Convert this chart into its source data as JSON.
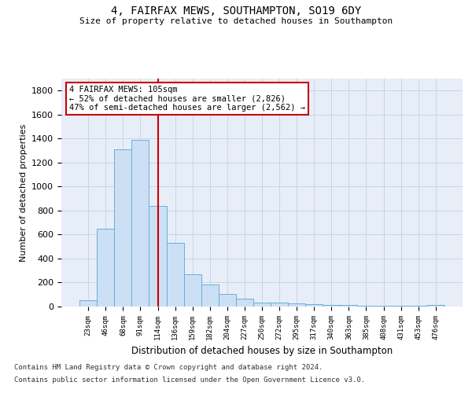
{
  "title1": "4, FAIRFAX MEWS, SOUTHAMPTON, SO19 6DY",
  "title2": "Size of property relative to detached houses in Southampton",
  "xlabel": "Distribution of detached houses by size in Southampton",
  "ylabel": "Number of detached properties",
  "categories": [
    "23sqm",
    "46sqm",
    "68sqm",
    "91sqm",
    "114sqm",
    "136sqm",
    "159sqm",
    "182sqm",
    "204sqm",
    "227sqm",
    "250sqm",
    "272sqm",
    "295sqm",
    "317sqm",
    "340sqm",
    "363sqm",
    "385sqm",
    "408sqm",
    "431sqm",
    "453sqm",
    "476sqm"
  ],
  "values": [
    50,
    650,
    1310,
    1390,
    840,
    530,
    270,
    185,
    105,
    65,
    35,
    30,
    25,
    20,
    15,
    10,
    8,
    6,
    5,
    4,
    10
  ],
  "bar_color": "#cce0f5",
  "bar_edge_color": "#6aaed6",
  "vline_x_idx": 4,
  "vline_color": "#cc0000",
  "annotation_line1": "4 FAIRFAX MEWS: 105sqm",
  "annotation_line2": "← 52% of detached houses are smaller (2,826)",
  "annotation_line3": "47% of semi-detached houses are larger (2,562) →",
  "annotation_box_color": "white",
  "annotation_box_edge": "#cc0000",
  "ylim": [
    0,
    1900
  ],
  "yticks": [
    0,
    200,
    400,
    600,
    800,
    1000,
    1200,
    1400,
    1600,
    1800
  ],
  "grid_color": "#c8d4e8",
  "background_color": "#e8eef8",
  "footer1": "Contains HM Land Registry data © Crown copyright and database right 2024.",
  "footer2": "Contains public sector information licensed under the Open Government Licence v3.0."
}
